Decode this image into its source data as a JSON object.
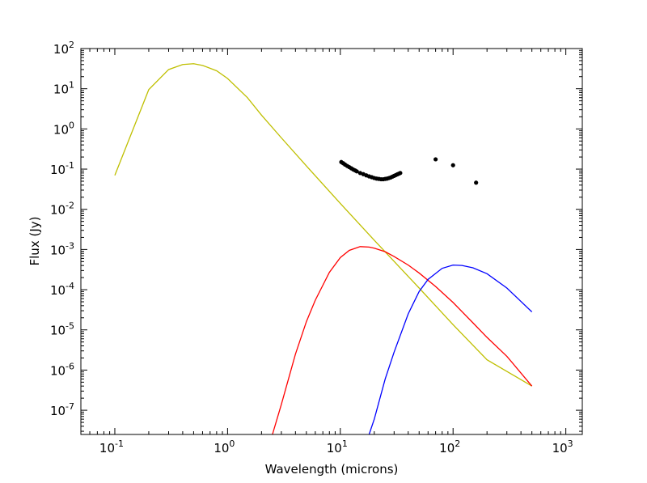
{
  "chart_data": {
    "type": "line",
    "title": "",
    "xlabel": "Wavelength (microns)",
    "ylabel": "Flux (Jy)",
    "xscale": "log",
    "yscale": "log",
    "xlim": [
      0.05,
      1400
    ],
    "ylim": [
      2.5e-08,
      100
    ],
    "grid": false,
    "legend": "none",
    "x_ticks": [
      {
        "base": "10",
        "exp": "-1",
        "value": 0.1
      },
      {
        "base": "10",
        "exp": "0",
        "value": 1
      },
      {
        "base": "10",
        "exp": "1",
        "value": 10
      },
      {
        "base": "10",
        "exp": "2",
        "value": 100
      },
      {
        "base": "10",
        "exp": "3",
        "value": 1000
      }
    ],
    "y_ticks": [
      {
        "base": "10",
        "exp": "2",
        "value": 100
      },
      {
        "base": "10",
        "exp": "1",
        "value": 10
      },
      {
        "base": "10",
        "exp": "0",
        "value": 1
      },
      {
        "base": "10",
        "exp": "-1",
        "value": 0.1
      },
      {
        "base": "10",
        "exp": "-2",
        "value": 0.01
      },
      {
        "base": "10",
        "exp": "-3",
        "value": 0.001
      },
      {
        "base": "10",
        "exp": "-4",
        "value": 0.0001
      },
      {
        "base": "10",
        "exp": "-5",
        "value": 1e-05
      },
      {
        "base": "10",
        "exp": "-6",
        "value": 1e-06
      },
      {
        "base": "10",
        "exp": "-7",
        "value": 1e-07
      }
    ],
    "series": [
      {
        "color": "#bfbf00",
        "kind": "line",
        "x": [
          0.1,
          0.2,
          0.3,
          0.4,
          0.5,
          0.6,
          0.8,
          1,
          1.5,
          2,
          3,
          5,
          10,
          20,
          50,
          100,
          200,
          500
        ],
        "y": [
          0.07,
          9.5,
          30,
          40,
          42,
          38,
          28,
          18,
          6,
          2.2,
          0.6,
          0.12,
          0.014,
          0.0017,
          0.00011,
          1.35e-05,
          1.8e-06,
          4e-07
        ]
      },
      {
        "color": "#ff0000",
        "kind": "line",
        "x": [
          2.5,
          3,
          4,
          5,
          6,
          8,
          10,
          12,
          15,
          18,
          20,
          25,
          30,
          40,
          50,
          70,
          100,
          150,
          200,
          300,
          500
        ],
        "y": [
          2.5e-08,
          1.4e-07,
          2.5e-06,
          1.6e-05,
          5.5e-05,
          0.00027,
          0.00063,
          0.00095,
          0.00118,
          0.00115,
          0.00108,
          0.00088,
          0.00067,
          0.00041,
          0.00026,
          0.00012,
          4.8e-05,
          1.5e-05,
          6.5e-06,
          2.2e-06,
          4e-07
        ]
      },
      {
        "color": "#0000ff",
        "kind": "line",
        "x": [
          18,
          20,
          25,
          30,
          40,
          50,
          60,
          80,
          100,
          120,
          150,
          200,
          300,
          500
        ],
        "y": [
          2.5e-08,
          6e-08,
          6e-07,
          2.8e-06,
          2.5e-05,
          9e-05,
          0.00018,
          0.00034,
          0.00041,
          0.0004,
          0.00035,
          0.00025,
          0.00011,
          2.8e-05
        ]
      },
      {
        "color": "#000000",
        "kind": "scatter",
        "x": [
          10.2,
          10.6,
          11,
          11.5,
          12,
          12.5,
          13,
          13.5,
          14,
          15,
          16,
          17,
          18,
          19,
          20,
          21,
          22,
          23,
          24,
          25,
          26,
          27,
          28,
          29,
          30,
          31,
          32,
          33,
          34,
          70,
          100,
          160
        ],
        "y": [
          0.15,
          0.14,
          0.13,
          0.12,
          0.112,
          0.105,
          0.098,
          0.093,
          0.088,
          0.08,
          0.075,
          0.07,
          0.066,
          0.063,
          0.06,
          0.058,
          0.057,
          0.056,
          0.056,
          0.057,
          0.058,
          0.06,
          0.062,
          0.065,
          0.068,
          0.071,
          0.074,
          0.077,
          0.08,
          0.175,
          0.125,
          0.046
        ]
      }
    ]
  }
}
